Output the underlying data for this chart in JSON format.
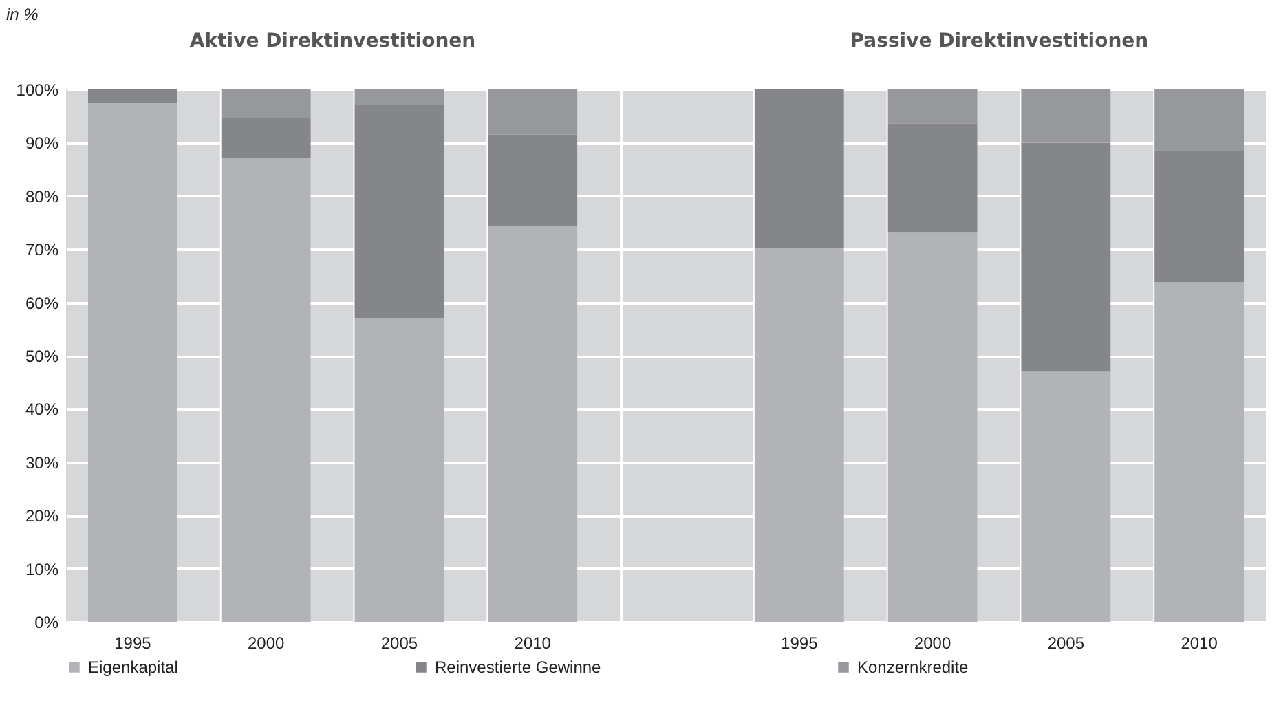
{
  "chart_data": {
    "type": "bar",
    "stacked": true,
    "ylabel": "in %",
    "annotations": [
      "Aktive Direktinvestitionen",
      "Passive Direktinvestitionen"
    ],
    "categories": [
      "1995",
      "2000",
      "2005",
      "2010",
      null,
      "1995",
      "2000",
      "2005",
      "2010"
    ],
    "series": [
      {
        "name": "Eigenkapital",
        "color": "#b2b3b6",
        "values": [
          97.4,
          87.1,
          57.0,
          74.4,
          null,
          70.3,
          73.1,
          47.0,
          63.8
        ]
      },
      {
        "name": "Reinvestierte Gewinne",
        "color": "#858689",
        "values": [
          2.6,
          7.6,
          40.1,
          17.1,
          null,
          29.7,
          20.5,
          43.0,
          24.8
        ]
      },
      {
        "name": "Konzernkredite",
        "color": "#97989b",
        "values": [
          0,
          5.3,
          2.9,
          8.5,
          null,
          0,
          6.4,
          10.0,
          11.4
        ]
      }
    ],
    "ylim": [
      0,
      100
    ],
    "yticks": [
      {
        "value": 0,
        "label": "0%"
      },
      {
        "value": 10,
        "label": "10%"
      },
      {
        "value": 20,
        "label": "20%"
      },
      {
        "value": 30,
        "label": "30%"
      },
      {
        "value": 40,
        "label": "40%"
      },
      {
        "value": 50,
        "label": "50%"
      },
      {
        "value": 60,
        "label": "60%"
      },
      {
        "value": 70,
        "label": "70%"
      },
      {
        "value": 80,
        "label": "80%"
      },
      {
        "value": 90,
        "label": "90%"
      },
      {
        "value": 100,
        "label": "100%"
      }
    ],
    "grid": true,
    "legend": "bottom"
  }
}
